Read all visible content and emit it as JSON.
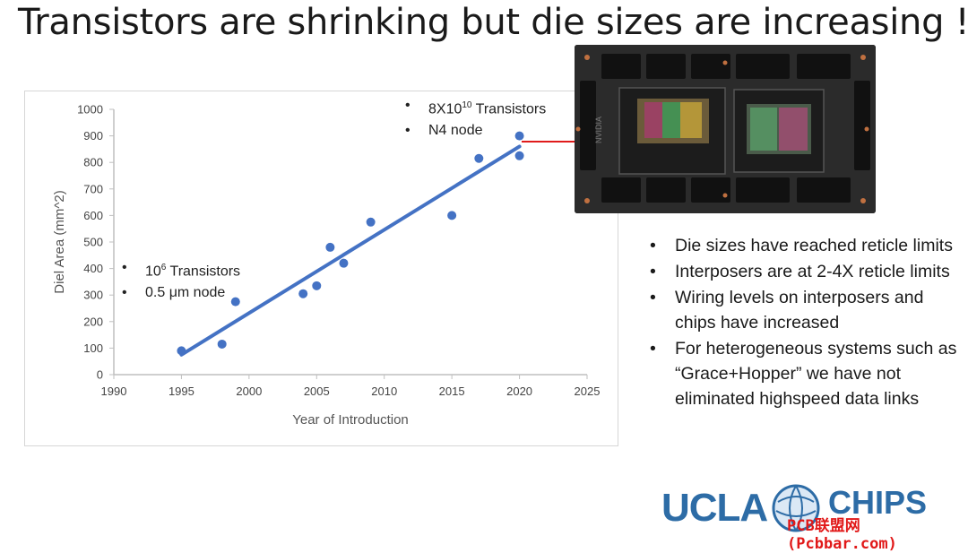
{
  "slide": {
    "title": "Transistors are shrinking but die sizes are increasing !"
  },
  "annotations": {
    "left": [
      {
        "base": "10",
        "sup": "6",
        "rest": " Transistors"
      },
      {
        "text": "0.5 μm node"
      }
    ],
    "top": [
      {
        "base": "8X10",
        "sup": "10",
        "rest": " Transistors"
      },
      {
        "text": "N4  node"
      }
    ]
  },
  "chip_image": {
    "icon": "grace-hopper-superchip-photo-icon"
  },
  "bullets": [
    "Die sizes have reached reticle limits",
    "Interposers are at 2-4X reticle limits",
    "Wiring levels on interposers and chips have increased",
    "For heterogeneous systems such as “Grace+Hopper” we have not eliminated highspeed data links"
  ],
  "logo": {
    "ucla": "UCLA",
    "chips": "CHIPS",
    "watermark": "PCB联盟网(Pcbbar.com)"
  },
  "colors": {
    "series": "#4472c4",
    "connector": "#e01b1b",
    "logo_blue": "#2d6ca6"
  },
  "chart_data": {
    "type": "scatter",
    "xlabel": "Year of Introduction",
    "ylabel": "Diel Area (mm^2)",
    "xlim": [
      1990,
      2025
    ],
    "ylim": [
      0,
      1000
    ],
    "xticks": [
      1990,
      1995,
      2000,
      2005,
      2010,
      2015,
      2020,
      2025
    ],
    "yticks": [
      0,
      100,
      200,
      300,
      400,
      500,
      600,
      700,
      800,
      900,
      1000
    ],
    "grid": false,
    "points": [
      {
        "x": 1995,
        "y": 90
      },
      {
        "x": 1998,
        "y": 115
      },
      {
        "x": 1999,
        "y": 275
      },
      {
        "x": 2004,
        "y": 305
      },
      {
        "x": 2005,
        "y": 335
      },
      {
        "x": 2006,
        "y": 480
      },
      {
        "x": 2007,
        "y": 420
      },
      {
        "x": 2009,
        "y": 575
      },
      {
        "x": 2015,
        "y": 600
      },
      {
        "x": 2017,
        "y": 815
      },
      {
        "x": 2020,
        "y": 900
      },
      {
        "x": 2020,
        "y": 825
      }
    ],
    "trendline": {
      "x": [
        1995,
        2020
      ],
      "y": [
        75,
        860
      ]
    }
  }
}
